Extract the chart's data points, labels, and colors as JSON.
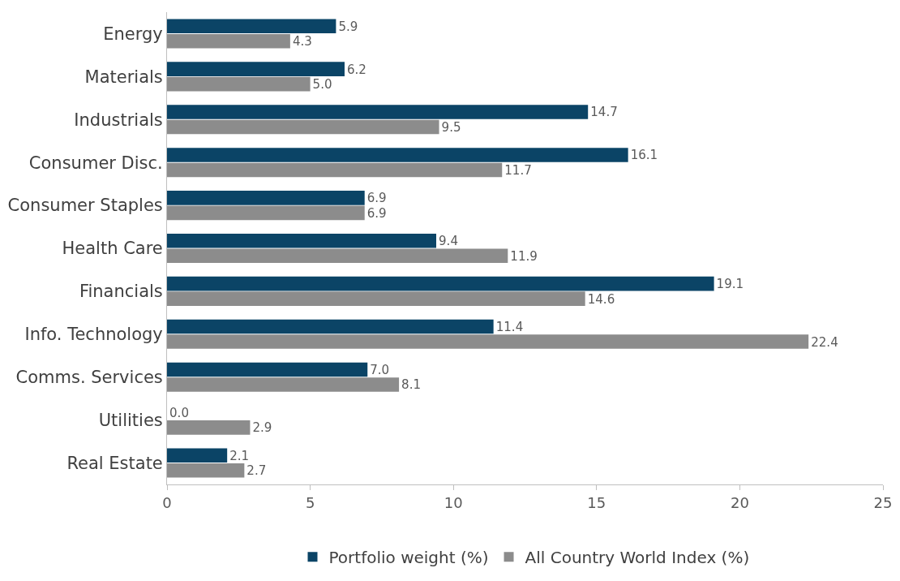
{
  "chart_data": {
    "type": "bar",
    "orientation": "horizontal",
    "categories": [
      "Energy",
      "Materials",
      "Industrials",
      "Consumer Disc.",
      "Consumer Staples",
      "Health Care",
      "Financials",
      "Info. Technology",
      "Comms. Services",
      "Utilities",
      "Real Estate"
    ],
    "series": [
      {
        "name": "Portfolio weight (%)",
        "color": "#0b4466",
        "values": [
          5.9,
          6.2,
          14.7,
          16.1,
          6.9,
          9.4,
          19.1,
          11.4,
          7.0,
          0.0,
          2.1
        ],
        "value_labels": [
          "5.9",
          "6.2",
          "14.7",
          "16.1",
          "6.9",
          "9.4",
          "19.1",
          "11.4",
          "7.0",
          "0.0",
          "2.1"
        ]
      },
      {
        "name": "All Country World Index (%)",
        "color": "#8c8c8c",
        "values": [
          4.3,
          5.0,
          9.5,
          11.7,
          6.9,
          11.9,
          14.6,
          22.4,
          8.1,
          2.9,
          2.7
        ],
        "value_labels": [
          "4.3",
          "5.0",
          "9.5",
          "11.7",
          "6.9",
          "11.9",
          "14.6",
          "22.4",
          "8.1",
          "2.9",
          "2.7"
        ]
      }
    ],
    "xlim": [
      0,
      25
    ],
    "xticks": [
      0,
      5,
      10,
      15,
      20,
      25
    ],
    "legend": "bottom"
  }
}
